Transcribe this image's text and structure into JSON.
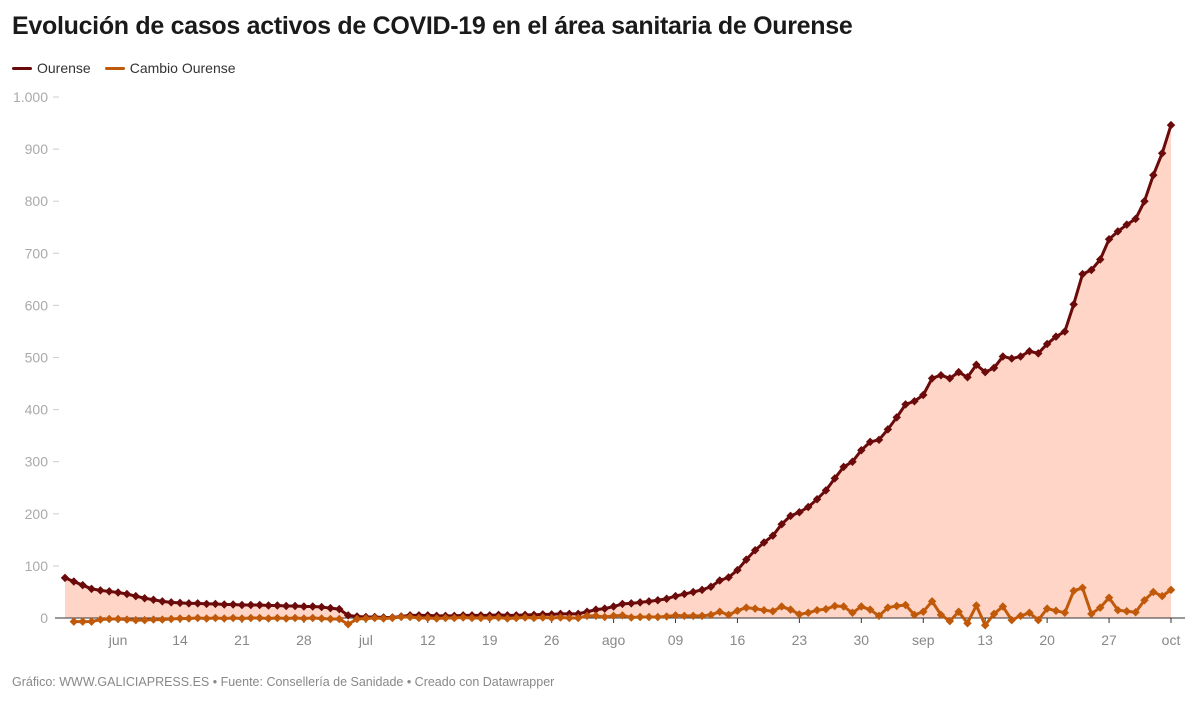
{
  "title": "Evolución de casos activos de COVID-19 en el área sanitaria de Ourense",
  "footer": "Gráfico: WWW.GALICIAPRESS.ES • Fuente: Consellería de Sanidade • Creado con Datawrapper",
  "chart_data": {
    "type": "line",
    "title": "Evolución de casos activos de COVID-19 en el área sanitaria de Ourense",
    "xlabel": "",
    "ylabel": "",
    "x_frequency": "daily",
    "xlim": [
      "2020-06-01",
      "2020-10-04"
    ],
    "ylim": [
      0,
      1000
    ],
    "yticks": [
      0,
      100,
      200,
      300,
      400,
      500,
      600,
      700,
      800,
      900,
      1000
    ],
    "ytick_labels": [
      "0",
      "100",
      "200",
      "300",
      "400",
      "500",
      "600",
      "700",
      "800",
      "900",
      "1.000"
    ],
    "xticks": [
      {
        "date": "2020-06-07",
        "label": "jun"
      },
      {
        "date": "2020-06-14",
        "label": "14"
      },
      {
        "date": "2020-06-21",
        "label": "21"
      },
      {
        "date": "2020-06-28",
        "label": "28"
      },
      {
        "date": "2020-07-05",
        "label": "jul"
      },
      {
        "date": "2020-07-12",
        "label": "12"
      },
      {
        "date": "2020-07-19",
        "label": "19"
      },
      {
        "date": "2020-07-26",
        "label": "26"
      },
      {
        "date": "2020-08-02",
        "label": "ago"
      },
      {
        "date": "2020-08-09",
        "label": "09"
      },
      {
        "date": "2020-08-16",
        "label": "16"
      },
      {
        "date": "2020-08-23",
        "label": "23"
      },
      {
        "date": "2020-08-30",
        "label": "30"
      },
      {
        "date": "2020-09-06",
        "label": "sep"
      },
      {
        "date": "2020-09-13",
        "label": "13"
      },
      {
        "date": "2020-09-20",
        "label": "20"
      },
      {
        "date": "2020-09-27",
        "label": "27"
      },
      {
        "date": "2020-10-04",
        "label": "oct"
      }
    ],
    "grid": false,
    "legend_position": "top-left",
    "series": [
      {
        "name": "Ourense",
        "color": "#6b0a0a",
        "area_fill": "#ffd5c8",
        "start": "2020-06-01",
        "values": [
          77,
          70,
          63,
          56,
          53,
          51,
          49,
          46,
          42,
          38,
          35,
          32,
          30,
          29,
          28,
          28,
          27,
          27,
          26,
          26,
          25,
          25,
          25,
          24,
          24,
          23,
          23,
          22,
          22,
          21,
          19,
          17,
          5,
          3,
          2,
          2,
          1,
          1,
          3,
          5,
          5,
          5,
          4,
          4,
          4,
          5,
          5,
          5,
          5,
          6,
          5,
          5,
          6,
          6,
          7,
          7,
          8,
          8,
          8,
          12,
          16,
          18,
          22,
          27,
          28,
          30,
          32,
          34,
          37,
          42,
          46,
          50,
          54,
          60,
          72,
          78,
          92,
          112,
          130,
          145,
          158,
          180,
          196,
          203,
          213,
          228,
          245,
          268,
          290,
          300,
          322,
          338,
          342,
          362,
          385,
          410,
          416,
          428,
          460,
          466,
          460,
          472,
          462,
          486,
          472,
          480,
          502,
          498,
          502,
          512,
          508,
          526,
          540,
          550,
          602,
          660,
          668,
          688,
          727,
          742,
          755,
          766,
          800,
          850,
          892,
          946
        ]
      },
      {
        "name": "Cambio Ourense",
        "color": "#c05a0a",
        "start": "2020-06-02",
        "values": [
          -7,
          -7,
          -7,
          -3,
          -2,
          -2,
          -3,
          -4,
          -4,
          -3,
          -3,
          -2,
          -1,
          -1,
          0,
          -1,
          0,
          -1,
          0,
          -1,
          0,
          0,
          -1,
          0,
          -1,
          0,
          -1,
          0,
          -1,
          -2,
          -2,
          -12,
          -2,
          -1,
          0,
          -1,
          0,
          2,
          2,
          0,
          0,
          -1,
          0,
          0,
          1,
          0,
          0,
          0,
          1,
          -1,
          0,
          1,
          0,
          1,
          0,
          1,
          0,
          0,
          4,
          4,
          2,
          4,
          5,
          1,
          2,
          2,
          2,
          3,
          5,
          4,
          4,
          4,
          6,
          12,
          6,
          14,
          20,
          18,
          15,
          13,
          22,
          16,
          7,
          10,
          15,
          17,
          23,
          22,
          10,
          22,
          16,
          4,
          20,
          23,
          25,
          6,
          12,
          32,
          6,
          -6,
          12,
          -10,
          24,
          -14,
          8,
          22,
          -4,
          4,
          10,
          -4,
          18,
          14,
          10,
          52,
          58,
          8,
          20,
          39,
          15,
          13,
          11,
          34,
          50,
          42,
          54
        ]
      }
    ]
  }
}
